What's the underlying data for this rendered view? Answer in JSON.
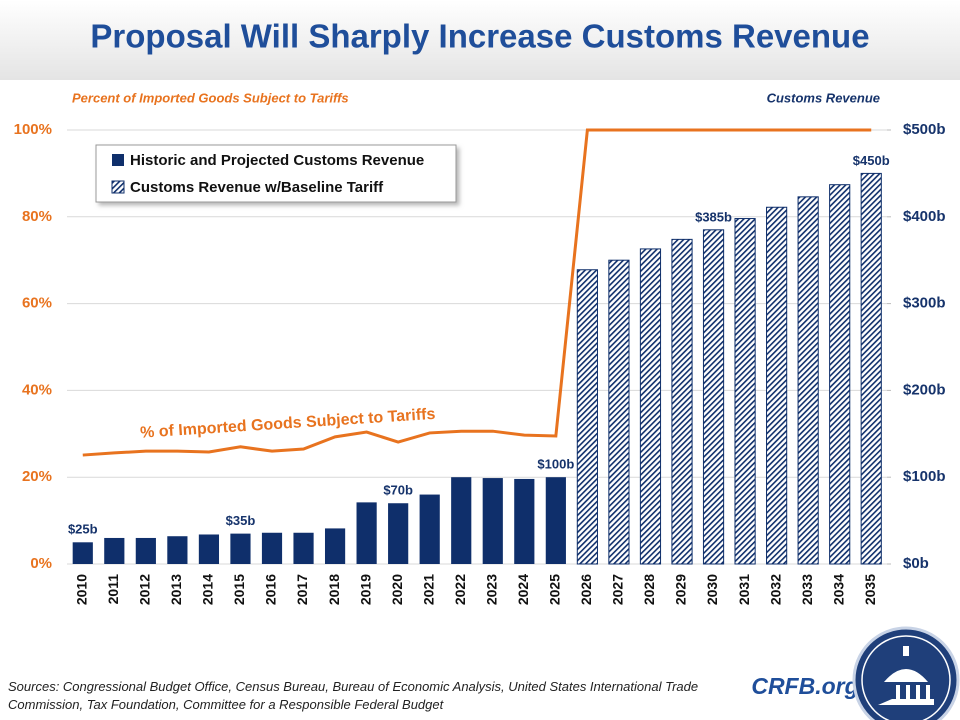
{
  "chart_data": {
    "type": "bar",
    "title": "Proposal Will Sharply Increase Customs Revenue",
    "y_axis_title": "Percent of Imported Goods Subject to Tariffs",
    "y2_axis_title": "Customs Revenue",
    "categories": [
      "2010",
      "2011",
      "2012",
      "2013",
      "2014",
      "2015",
      "2016",
      "2017",
      "2018",
      "2019",
      "2020",
      "2021",
      "2022",
      "2023",
      "2024",
      "2025",
      "2026",
      "2027",
      "2028",
      "2029",
      "2030",
      "2031",
      "2032",
      "2033",
      "2034",
      "2035"
    ],
    "series": [
      {
        "name": "Historic and Projected Customs Revenue",
        "type": "bar",
        "axis": "y2",
        "color": "#0f2f6b",
        "pattern": "solid",
        "values": [
          25,
          30,
          30,
          32,
          34,
          35,
          36,
          36,
          41,
          71,
          70,
          80,
          100,
          99,
          98,
          100,
          null,
          null,
          null,
          null,
          null,
          null,
          null,
          null,
          null,
          null
        ],
        "value_labels": [
          "$25b",
          null,
          null,
          null,
          null,
          "$35b",
          null,
          null,
          null,
          null,
          "$70b",
          null,
          null,
          null,
          null,
          "$100b",
          null,
          null,
          null,
          null,
          null,
          null,
          null,
          null,
          null,
          null
        ]
      },
      {
        "name": "Customs Revenue w/Baseline Tariff",
        "type": "bar",
        "axis": "y2",
        "color": "#0f2f6b",
        "pattern": "hatch",
        "values": [
          null,
          null,
          null,
          null,
          null,
          null,
          null,
          null,
          null,
          null,
          null,
          null,
          null,
          null,
          null,
          null,
          339,
          350,
          363,
          374,
          385,
          398,
          411,
          423,
          437,
          450
        ],
        "value_labels": [
          null,
          null,
          null,
          null,
          null,
          null,
          null,
          null,
          null,
          null,
          null,
          null,
          null,
          null,
          null,
          null,
          null,
          null,
          null,
          null,
          "$385b",
          null,
          null,
          null,
          null,
          "$450b"
        ]
      },
      {
        "name": "% of Imported Goods Subject to Tariffs",
        "type": "line",
        "axis": "y",
        "color": "#e8731f",
        "values": [
          25.1,
          25.6,
          26,
          26,
          25.8,
          27,
          26,
          26.5,
          29.3,
          30.4,
          28.1,
          30.2,
          30.6,
          30.6,
          29.7,
          29.5,
          100,
          100,
          100,
          100,
          100,
          100,
          100,
          100,
          100,
          100
        ]
      }
    ],
    "ylim": [
      0,
      100
    ],
    "yticks": [
      {
        "value": 0,
        "label": "0%"
      },
      {
        "value": 20,
        "label": "20%"
      },
      {
        "value": 40,
        "label": "40%"
      },
      {
        "value": 60,
        "label": "60%"
      },
      {
        "value": 80,
        "label": "80%"
      },
      {
        "value": 100,
        "label": "100%"
      }
    ],
    "y2lim": [
      0,
      500
    ],
    "y2ticks": [
      {
        "value": 0,
        "label": "$0b"
      },
      {
        "value": 100,
        "label": "$100b"
      },
      {
        "value": 200,
        "label": "$200b"
      },
      {
        "value": 300,
        "label": "$300b"
      },
      {
        "value": 400,
        "label": "$400b"
      },
      {
        "value": 500,
        "label": "$500b"
      }
    ],
    "grid": true,
    "legend": "upper left",
    "sources": "Sources: Congressional Budget Office, Census Bureau, Bureau of Economic Analysis, United States International Trade Commission, Tax Foundation, Committee for a Responsible Federal Budget",
    "brand": "CRFB.org"
  }
}
